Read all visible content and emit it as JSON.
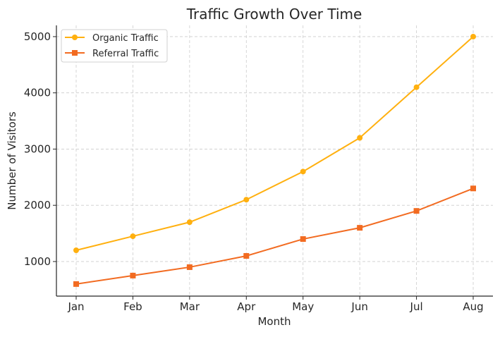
{
  "chart_data": {
    "type": "line",
    "title": "Traffic Growth Over Time",
    "xlabel": "Month",
    "ylabel": "Number of Visitors",
    "categories": [
      "Jan",
      "Feb",
      "Mar",
      "Apr",
      "May",
      "Jun",
      "Jul",
      "Aug"
    ],
    "ylim": [
      385,
      5200
    ],
    "yticks": [
      1000,
      2000,
      3000,
      4000,
      5000
    ],
    "grid": true,
    "legend_position": "top-left",
    "series": [
      {
        "name": "Organic Traffic",
        "values": [
          1200,
          1450,
          1700,
          2100,
          2600,
          3200,
          4100,
          5000
        ],
        "color": "#FFB00F",
        "marker": "circle"
      },
      {
        "name": "Referral Traffic",
        "values": [
          600,
          750,
          900,
          1100,
          1400,
          1600,
          1900,
          2300
        ],
        "color": "#F26B21",
        "marker": "square"
      }
    ]
  }
}
